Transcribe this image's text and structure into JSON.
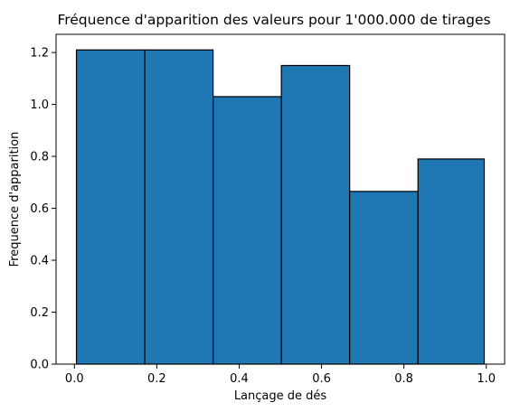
{
  "chart_data": {
    "type": "bar",
    "title": "Fréquence d'apparition des valeurs pour 1'000.000 de tirages",
    "xlabel": "Lançage de dés",
    "ylabel": "Frequence d'apparition",
    "bin_edges": [
      0.005,
      0.1708,
      0.3367,
      0.5025,
      0.6683,
      0.8342,
      0.995
    ],
    "values": [
      1.21,
      1.21,
      1.03,
      1.15,
      0.665,
      0.79
    ],
    "xlim": [
      -0.0445,
      1.0445
    ],
    "ylim": [
      0,
      1.27
    ],
    "xticks": [
      0.0,
      0.2,
      0.4,
      0.6,
      0.8,
      1.0
    ],
    "xtick_labels": [
      "0.0",
      "0.2",
      "0.4",
      "0.6",
      "0.8",
      "1.0"
    ],
    "yticks": [
      0.0,
      0.2,
      0.4,
      0.6,
      0.8,
      1.0,
      1.2
    ],
    "ytick_labels": [
      "0.0",
      "0.2",
      "0.4",
      "0.6",
      "0.8",
      "1.0",
      "1.2"
    ],
    "bar_color": "#1f77b4",
    "edge_color": "#000000",
    "grid": false,
    "legend": "none"
  }
}
